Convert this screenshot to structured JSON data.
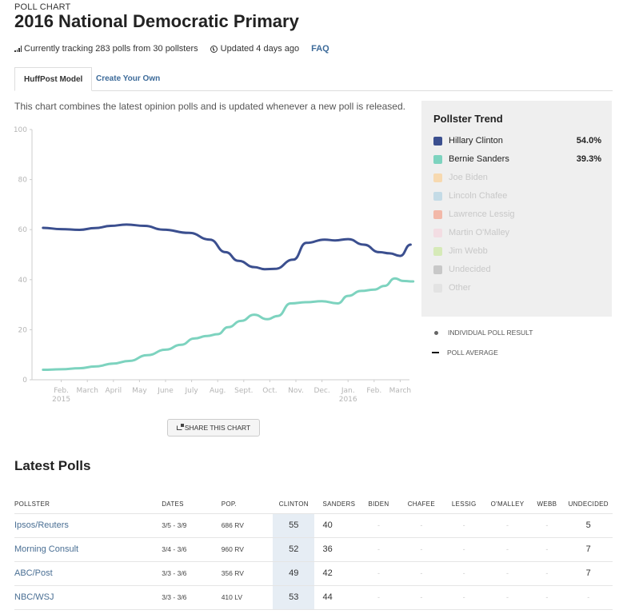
{
  "header": {
    "eyebrow": "POLL CHART",
    "title": "2016 National Democratic Primary",
    "tracking": "Currently tracking 283 polls from 30 pollsters",
    "updated": "Updated 4 days ago",
    "faq": "FAQ"
  },
  "tabs": [
    {
      "label": "HuffPost Model",
      "active": true
    },
    {
      "label": "Create Your Own",
      "active": false
    }
  ],
  "description": "This chart combines the latest opinion polls and is updated whenever a new poll is released.",
  "legend": {
    "title": "Pollster Trend",
    "items": [
      {
        "label": "Hillary Clinton",
        "value": "54.0%",
        "color": "#3b4f8f",
        "active": true
      },
      {
        "label": "Bernie Sanders",
        "value": "39.3%",
        "color": "#7dd3bf",
        "active": true
      },
      {
        "label": "Joe Biden",
        "value": "",
        "color": "#f7d9b0",
        "active": false
      },
      {
        "label": "Lincoln Chafee",
        "value": "",
        "color": "#c4dbe6",
        "active": false
      },
      {
        "label": "Lawrence Lessig",
        "value": "",
        "color": "#f2b8a8",
        "active": false
      },
      {
        "label": "Martin O'Malley",
        "value": "",
        "color": "#f3dde3",
        "active": false
      },
      {
        "label": "Jim Webb",
        "value": "",
        "color": "#d6eab8",
        "active": false
      },
      {
        "label": "Undecided",
        "value": "",
        "color": "#c8c8c8",
        "active": false
      },
      {
        "label": "Other",
        "value": "",
        "color": "#e3e3e3",
        "active": false
      }
    ],
    "key_individual": "INDIVIDUAL POLL RESULT",
    "key_average": "POLL AVERAGE"
  },
  "share_label": "SHARE THIS CHART",
  "chart_data": {
    "type": "line",
    "title": "2016 National Democratic Primary",
    "xlabel": "",
    "ylabel": "",
    "ylim": [
      0,
      100
    ],
    "yticks": [
      0,
      20,
      40,
      60,
      80,
      100
    ],
    "xlim_months": [
      0,
      14.6
    ],
    "xticks": [
      {
        "month": 1,
        "label": "Feb.",
        "sub": "2015"
      },
      {
        "month": 2,
        "label": "March",
        "sub": ""
      },
      {
        "month": 3,
        "label": "April",
        "sub": ""
      },
      {
        "month": 4,
        "label": "May",
        "sub": ""
      },
      {
        "month": 5,
        "label": "June",
        "sub": ""
      },
      {
        "month": 6,
        "label": "July",
        "sub": ""
      },
      {
        "month": 7,
        "label": "Aug.",
        "sub": ""
      },
      {
        "month": 8,
        "label": "Sept.",
        "sub": ""
      },
      {
        "month": 9,
        "label": "Oct.",
        "sub": ""
      },
      {
        "month": 10,
        "label": "Nov.",
        "sub": ""
      },
      {
        "month": 11,
        "label": "Dec.",
        "sub": ""
      },
      {
        "month": 12,
        "label": "Jan.",
        "sub": "2016"
      },
      {
        "month": 13,
        "label": "Feb.",
        "sub": ""
      },
      {
        "month": 14,
        "label": "March",
        "sub": ""
      }
    ],
    "grid": false,
    "series": [
      {
        "name": "Hillary Clinton",
        "color": "#3b4f8f",
        "x": [
          0.3,
          1.0,
          1.7,
          2.3,
          2.9,
          3.5,
          4.2,
          4.9,
          5.9,
          6.7,
          7.3,
          7.8,
          8.4,
          8.8,
          9.2,
          9.9,
          10.4,
          11.1,
          11.5,
          12.0,
          12.6,
          13.2,
          13.6,
          14.0,
          14.4
        ],
        "values": [
          60.7,
          60.2,
          59.9,
          60.6,
          61.5,
          62.0,
          61.5,
          60.0,
          58.7,
          56.0,
          51.0,
          47.5,
          45.0,
          44.2,
          44.3,
          48.0,
          54.7,
          56.0,
          55.7,
          56.2,
          54.0,
          51.0,
          50.5,
          49.5,
          54.0
        ]
      },
      {
        "name": "Bernie Sanders",
        "color": "#7dd3bf",
        "x": [
          0.3,
          1.0,
          1.7,
          2.3,
          3.0,
          3.6,
          4.3,
          5.0,
          5.6,
          6.1,
          6.6,
          7.0,
          7.4,
          7.9,
          8.4,
          8.9,
          9.3,
          9.8,
          10.4,
          11.0,
          11.6,
          12.0,
          12.5,
          13.0,
          13.4,
          13.8,
          14.1,
          14.5
        ],
        "values": [
          4.0,
          4.2,
          4.6,
          5.3,
          6.5,
          7.5,
          9.8,
          12.0,
          14.0,
          16.5,
          17.5,
          18.2,
          21.0,
          23.5,
          26.0,
          24.2,
          25.5,
          30.5,
          31.0,
          31.4,
          30.5,
          33.5,
          35.5,
          36.0,
          37.5,
          40.5,
          39.5,
          39.3
        ]
      }
    ]
  },
  "latest_polls": {
    "title": "Latest Polls",
    "columns": [
      "POLLSTER",
      "DATES",
      "POP.",
      "CLINTON",
      "SANDERS",
      "BIDEN",
      "CHAFEE",
      "LESSIG",
      "O'MALLEY",
      "WEBB",
      "UNDECIDED"
    ],
    "rows": [
      {
        "pollster": "Ipsos/Reuters",
        "dates": "3/5 - 3/9",
        "pop": "686 RV",
        "clinton": "55",
        "sanders": "40",
        "biden": "-",
        "chafee": "-",
        "lessig": "-",
        "omalley": "-",
        "webb": "-",
        "undecided": "5"
      },
      {
        "pollster": "Morning Consult",
        "dates": "3/4 - 3/6",
        "pop": "960 RV",
        "clinton": "52",
        "sanders": "36",
        "biden": "-",
        "chafee": "-",
        "lessig": "-",
        "omalley": "-",
        "webb": "-",
        "undecided": "7"
      },
      {
        "pollster": "ABC/Post",
        "dates": "3/3 - 3/6",
        "pop": "356 RV",
        "clinton": "49",
        "sanders": "42",
        "biden": "-",
        "chafee": "-",
        "lessig": "-",
        "omalley": "-",
        "webb": "-",
        "undecided": "7"
      },
      {
        "pollster": "NBC/WSJ",
        "dates": "3/3 - 3/6",
        "pop": "410 LV",
        "clinton": "53",
        "sanders": "44",
        "biden": "-",
        "chafee": "-",
        "lessig": "-",
        "omalley": "-",
        "webb": "-",
        "undecided": "-"
      }
    ]
  }
}
